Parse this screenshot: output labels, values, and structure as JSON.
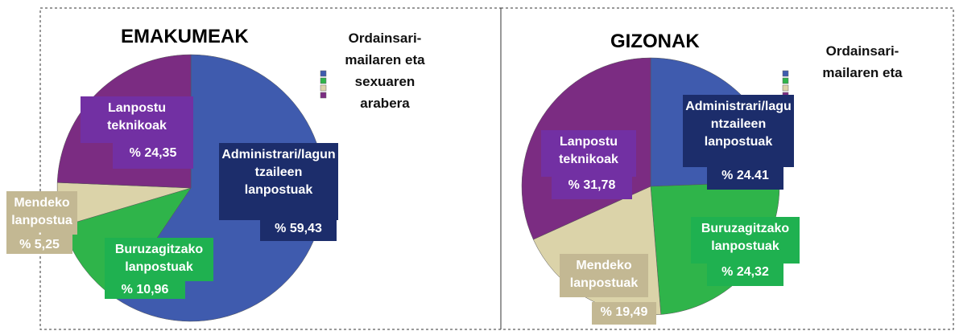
{
  "chart_data": [
    {
      "type": "pie",
      "title": "EMAKUMEAK",
      "subtitle": "Ordainsari-mailaren eta sexuaren arabera",
      "categories": [
        "Administrari/laguntzaileen lanpostuak",
        "Buruzagitzako lanpostuak",
        "Mendeko lanpostuak",
        "Lanpostu teknikoak"
      ],
      "values": [
        59.43,
        10.96,
        5.25,
        24.35
      ],
      "value_labels": [
        "% 59,43",
        "% 10,96",
        "% 5,25",
        "% 24,35"
      ],
      "colors": [
        "#3f5bae",
        "#2fb44a",
        "#dbd3a9",
        "#7b2c82"
      ],
      "label_colors": [
        "#1c2d6b",
        "#1fb150",
        "#c3b893",
        "#7230a3"
      ]
    },
    {
      "type": "pie",
      "title": "GIZONAK",
      "subtitle": "Ordainsari-mailaren eta",
      "categories": [
        "Administrari/laguntzaileen lanpostuak",
        "Buruzagitzako lanpostuak",
        "Mendeko lanpostuak",
        "Lanpostu teknikoak"
      ],
      "values": [
        24.41,
        24.32,
        19.49,
        31.78
      ],
      "value_labels": [
        "% 24.41",
        "% 24,32",
        "% 19,49",
        "% 31,78"
      ],
      "colors": [
        "#3f5bae",
        "#2fb44a",
        "#dbd3a9",
        "#7b2c82"
      ],
      "label_colors": [
        "#1c2d6b",
        "#1fb150",
        "#c3b893",
        "#7230a3"
      ]
    }
  ]
}
